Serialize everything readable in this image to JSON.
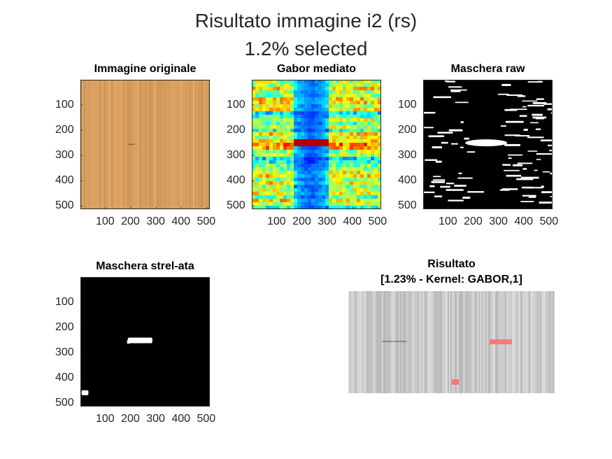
{
  "figure": {
    "title_line1": "Risultato immagine i2 (rs)",
    "title_line2": "1.2% selected"
  },
  "chart_data": [
    {
      "type": "heatmap",
      "title": "Immagine originale",
      "content": "wood texture photo (orange-tan) with a thin dark defect line near y=255, x 190-215",
      "base_color": "#d9a060",
      "xticks": [
        "100",
        "200",
        "300",
        "400",
        "500"
      ],
      "yticks": [
        "100",
        "200",
        "300",
        "400",
        "500"
      ],
      "xlim": [
        1,
        512
      ],
      "ylim": [
        1,
        512
      ]
    },
    {
      "type": "heatmap",
      "title": "Gabor mediato",
      "colormap": "jet",
      "content": "jet-colored horizontal streaks; dark blue vertical band x 190-280; red streak at y 250-260",
      "xticks": [
        "100",
        "200",
        "300",
        "400",
        "500"
      ],
      "yticks": [
        "100",
        "200",
        "300",
        "400",
        "500"
      ],
      "xlim": [
        1,
        512
      ],
      "ylim": [
        1,
        512
      ]
    },
    {
      "type": "heatmap",
      "title": "Maschera raw",
      "colormap": "gray",
      "content": "binary mask: white horizontal streaks on black; black vertical band x 190-280; white blob near y 250",
      "xticks": [
        "100",
        "200",
        "300",
        "400",
        "500"
      ],
      "yticks": [
        "100",
        "200",
        "300",
        "400",
        "500"
      ],
      "xlim": [
        1,
        512
      ],
      "ylim": [
        1,
        512
      ]
    },
    {
      "type": "heatmap",
      "title": "Maschera strel-ata",
      "colormap": "gray",
      "content": "binary mask: black background; white bar x 185-285 y 240-265; small white blob x 5-40 y 440-470",
      "xticks": [
        "100",
        "200",
        "300",
        "400",
        "500"
      ],
      "yticks": [
        "100",
        "200",
        "300",
        "400",
        "500"
      ],
      "xlim": [
        1,
        512
      ],
      "ylim": [
        1,
        512
      ]
    },
    {
      "type": "heatmap",
      "title_line1": "Risultato",
      "title_line2": "[1.23% - Kernel: GABOR,1]",
      "content": "side-by-side grayscale textures; right half has red-highlighted detected regions",
      "highlight_color": "#ff6a6a"
    }
  ]
}
